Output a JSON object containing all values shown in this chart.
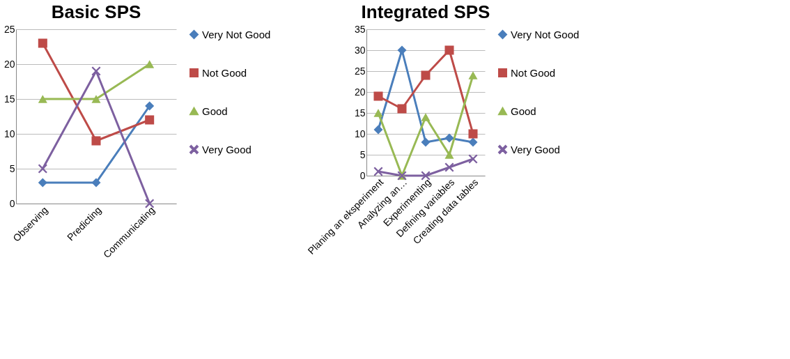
{
  "chart_data": [
    {
      "type": "line",
      "title": "Basic SPS",
      "categories": [
        "Observing",
        "Predicting",
        "Communicating"
      ],
      "ylim": [
        0,
        25
      ],
      "yticks": [
        0,
        5,
        10,
        15,
        20,
        25
      ],
      "grid": "y",
      "legend": "right",
      "line_style": "solid",
      "series": [
        {
          "name": "Very Not Good",
          "color": "#4a7ebb",
          "marker": "diamond",
          "values": [
            3,
            3,
            14
          ]
        },
        {
          "name": "Not Good",
          "color": "#be4b48",
          "marker": "square",
          "values": [
            23,
            9,
            12
          ]
        },
        {
          "name": "Good",
          "color": "#98b954",
          "marker": "triangle",
          "values": [
            15,
            15,
            20
          ]
        },
        {
          "name": "Very Good",
          "color": "#7d60a0",
          "marker": "cross",
          "values": [
            5,
            19,
            0
          ]
        }
      ]
    },
    {
      "type": "line",
      "title": "Integrated SPS",
      "categories": [
        "Planing an eksperiment",
        "Analyzing an…",
        "Experimenting",
        "Defining variables",
        "Creating data tables"
      ],
      "ylim": [
        0,
        35
      ],
      "yticks": [
        0,
        5,
        10,
        15,
        20,
        25,
        30,
        35
      ],
      "grid": "y",
      "legend": "right",
      "line_style": "solid",
      "series": [
        {
          "name": "Very Not Good",
          "color": "#4a7ebb",
          "marker": "diamond",
          "values": [
            11,
            30,
            8,
            9,
            8
          ]
        },
        {
          "name": "Not Good",
          "color": "#be4b48",
          "marker": "square",
          "values": [
            19,
            16,
            24,
            30,
            10
          ]
        },
        {
          "name": "Good",
          "color": "#98b954",
          "marker": "triangle",
          "values": [
            15,
            0,
            14,
            5,
            24
          ]
        },
        {
          "name": "Very Good",
          "color": "#7d60a0",
          "marker": "cross",
          "values": [
            1,
            0,
            0,
            2,
            4
          ]
        }
      ]
    }
  ]
}
